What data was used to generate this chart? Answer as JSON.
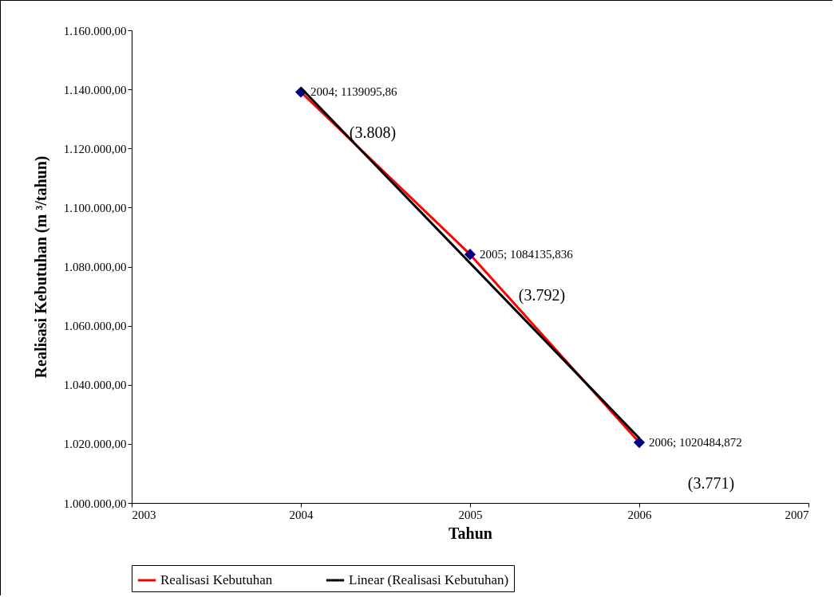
{
  "chart_data": {
    "type": "line",
    "xlabel": "Tahun",
    "ylabel": "Realisasi Kebutuhan (m ³/tahun)",
    "xlim": [
      2003,
      2007
    ],
    "xticks": [
      2003,
      2004,
      2005,
      2006,
      2007
    ],
    "ylim": [
      1000000,
      1160000
    ],
    "yticks": [
      {
        "value": 1000000,
        "label": "1.000.000,00"
      },
      {
        "value": 1020000,
        "label": "1.020.000,00"
      },
      {
        "value": 1040000,
        "label": "1.040.000,00"
      },
      {
        "value": 1060000,
        "label": "1.060.000,00"
      },
      {
        "value": 1080000,
        "label": "1.080.000,00"
      },
      {
        "value": 1100000,
        "label": "1.100.000,00"
      },
      {
        "value": 1120000,
        "label": "1.120.000,00"
      },
      {
        "value": 1140000,
        "label": "1.140.000,00"
      },
      {
        "value": 1160000,
        "label": "1.160.000,00"
      }
    ],
    "grid": false,
    "legend": "bottom",
    "series": [
      {
        "name": "Realisasi Kebutuhan",
        "color": "#ff0000",
        "marker": "diamond",
        "x": [
          2004,
          2005,
          2006
        ],
        "values": [
          1139095.86,
          1084135.836,
          1020484.872
        ],
        "value_labels": [
          "2004; 1139095,86",
          "2005; 1084135,836",
          "2006; 1020484,872"
        ]
      },
      {
        "name": "Linear (Realisasi Kebutuhan)",
        "type": "line",
        "color": "#000000",
        "marker": "none",
        "x": [
          2004,
          2006
        ],
        "values": [
          1140500,
          1021900
        ]
      }
    ],
    "annotations": [
      "(3.808)",
      "(3.792)",
      "(3.771)"
    ]
  }
}
